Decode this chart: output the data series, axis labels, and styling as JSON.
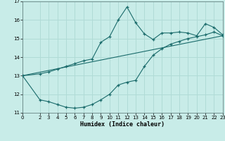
{
  "xlabel": "Humidex (Indice chaleur)",
  "bg_color": "#c8ece8",
  "grid_color": "#b0dbd6",
  "line_color": "#1a6b6b",
  "xlim": [
    0,
    23
  ],
  "ylim": [
    11,
    17
  ],
  "xticks": [
    0,
    2,
    3,
    4,
    5,
    6,
    7,
    8,
    9,
    10,
    11,
    12,
    13,
    14,
    15,
    16,
    17,
    18,
    19,
    20,
    21,
    22,
    23
  ],
  "yticks": [
    11,
    12,
    13,
    14,
    15,
    16,
    17
  ],
  "line1_x": [
    0,
    2,
    3,
    4,
    5,
    6,
    7,
    8,
    9,
    10,
    11,
    12,
    13,
    14,
    15,
    16,
    17,
    18,
    19,
    20,
    21,
    22,
    23
  ],
  "line1_y": [
    13.0,
    13.1,
    13.2,
    13.35,
    13.5,
    13.65,
    13.8,
    13.9,
    14.8,
    15.1,
    16.0,
    16.7,
    15.85,
    15.25,
    14.95,
    15.3,
    15.3,
    15.35,
    15.3,
    15.15,
    15.8,
    15.6,
    15.2
  ],
  "line2_x": [
    0,
    2,
    3,
    4,
    5,
    6,
    7,
    8,
    9,
    10,
    11,
    12,
    13,
    14,
    15,
    16,
    17,
    18,
    19,
    20,
    21,
    22,
    23
  ],
  "line2_y": [
    13.0,
    11.7,
    11.6,
    11.45,
    11.3,
    11.25,
    11.3,
    11.45,
    11.7,
    12.0,
    12.5,
    12.65,
    12.75,
    13.5,
    14.1,
    14.45,
    14.7,
    14.85,
    15.0,
    15.1,
    15.2,
    15.35,
    15.15
  ],
  "line3_x": [
    0,
    23
  ],
  "line3_y": [
    13.0,
    15.15
  ]
}
